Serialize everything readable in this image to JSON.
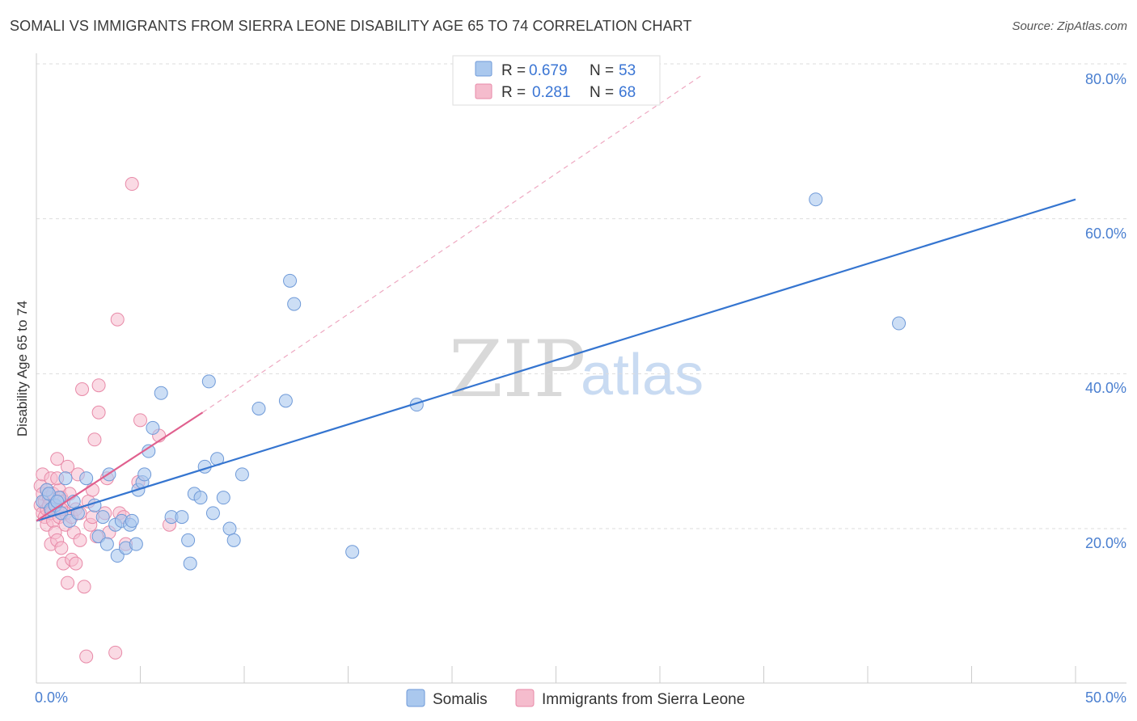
{
  "title": "SOMALI VS IMMIGRANTS FROM SIERRA LEONE DISABILITY AGE 65 TO 74 CORRELATION CHART",
  "source": "Source: ZipAtlas.com",
  "watermark": {
    "zip": "ZIP",
    "atlas": "atlas"
  },
  "legend": {
    "r_label": "R =",
    "n_label": "N =",
    "series1": {
      "r": "0.679",
      "n": "53"
    },
    "series2": {
      "r": "0.281",
      "n": "68"
    }
  },
  "colors": {
    "blue_fill": "#aac8ee",
    "blue_stroke": "#6f9ad8",
    "blue_line": "#3575d0",
    "pink_fill": "#f5bccd",
    "pink_stroke": "#e88aa8",
    "pink_line": "#e0608e"
  },
  "chart_data": {
    "type": "scatter",
    "title": "SOMALI VS IMMIGRANTS FROM SIERRA LEONE DISABILITY AGE 65 TO 74 CORRELATION CHART",
    "xlabel": "",
    "ylabel": "Disability Age 65 to 74",
    "xlim": [
      0,
      50
    ],
    "ylim": [
      1,
      81
    ],
    "x_tick_labels": [
      "0.0%",
      "50.0%"
    ],
    "y_ticks": [
      20,
      40,
      60,
      80
    ],
    "y_tick_labels": [
      "20.0%",
      "40.0%",
      "60.0%",
      "80.0%"
    ],
    "series": [
      {
        "name": "Somalis",
        "r": 0.679,
        "n": 53,
        "trend": {
          "x": [
            0,
            50
          ],
          "y": [
            21.0,
            62.5
          ]
        },
        "points": [
          [
            0.3,
            23.5
          ],
          [
            0.5,
            25.0
          ],
          [
            0.7,
            22.5
          ],
          [
            0.9,
            23.0
          ],
          [
            1.1,
            24.0
          ],
          [
            1.2,
            22.0
          ],
          [
            1.4,
            26.5
          ],
          [
            1.6,
            21.0
          ],
          [
            1.8,
            23.5
          ],
          [
            2.0,
            22.0
          ],
          [
            2.4,
            26.5
          ],
          [
            2.8,
            23.0
          ],
          [
            3.0,
            19.0
          ],
          [
            3.2,
            21.5
          ],
          [
            3.4,
            18.0
          ],
          [
            3.5,
            27.0
          ],
          [
            3.8,
            20.5
          ],
          [
            3.9,
            16.5
          ],
          [
            4.1,
            21.0
          ],
          [
            4.3,
            17.5
          ],
          [
            4.5,
            20.5
          ],
          [
            4.6,
            21.0
          ],
          [
            4.8,
            18.0
          ],
          [
            4.9,
            25.0
          ],
          [
            5.1,
            26.0
          ],
          [
            5.2,
            27.0
          ],
          [
            5.4,
            30.0
          ],
          [
            5.6,
            33.0
          ],
          [
            6.0,
            37.5
          ],
          [
            6.5,
            21.5
          ],
          [
            7.0,
            21.5
          ],
          [
            7.3,
            18.5
          ],
          [
            7.4,
            15.5
          ],
          [
            7.6,
            24.5
          ],
          [
            7.9,
            24.0
          ],
          [
            8.1,
            28.0
          ],
          [
            8.3,
            39.0
          ],
          [
            8.5,
            22.0
          ],
          [
            8.7,
            29.0
          ],
          [
            9.0,
            24.0
          ],
          [
            9.3,
            20.0
          ],
          [
            9.5,
            18.5
          ],
          [
            9.9,
            27.0
          ],
          [
            10.7,
            35.5
          ],
          [
            12.0,
            36.5
          ],
          [
            12.2,
            52.0
          ],
          [
            12.4,
            49.0
          ],
          [
            15.2,
            17.0
          ],
          [
            18.3,
            36.0
          ],
          [
            37.5,
            62.5
          ],
          [
            41.5,
            46.5
          ],
          [
            0.6,
            24.5
          ],
          [
            1.0,
            23.5
          ]
        ]
      },
      {
        "name": "Immigrants from Sierra Leone",
        "r": 0.281,
        "n": 68,
        "trend": {
          "x": [
            0,
            8.0
          ],
          "y": [
            21.0,
            35.0
          ]
        },
        "trend_dashed": {
          "x": [
            8.0,
            32.0
          ],
          "y": [
            35.0,
            78.5
          ]
        },
        "points": [
          [
            0.2,
            23.0
          ],
          [
            0.2,
            25.5
          ],
          [
            0.3,
            22.0
          ],
          [
            0.3,
            24.5
          ],
          [
            0.3,
            27.0
          ],
          [
            0.4,
            21.5
          ],
          [
            0.4,
            23.5
          ],
          [
            0.5,
            25.0
          ],
          [
            0.5,
            22.5
          ],
          [
            0.5,
            20.5
          ],
          [
            0.6,
            24.0
          ],
          [
            0.6,
            23.0
          ],
          [
            0.7,
            22.0
          ],
          [
            0.7,
            26.5
          ],
          [
            0.7,
            18.0
          ],
          [
            0.8,
            24.5
          ],
          [
            0.8,
            21.0
          ],
          [
            0.9,
            23.0
          ],
          [
            0.9,
            19.5
          ],
          [
            1.0,
            29.0
          ],
          [
            1.0,
            22.5
          ],
          [
            1.0,
            18.5
          ],
          [
            1.1,
            25.0
          ],
          [
            1.1,
            21.5
          ],
          [
            1.2,
            24.0
          ],
          [
            1.2,
            17.5
          ],
          [
            1.3,
            23.5
          ],
          [
            1.3,
            15.5
          ],
          [
            1.4,
            22.0
          ],
          [
            1.4,
            20.5
          ],
          [
            1.5,
            13.0
          ],
          [
            1.5,
            28.0
          ],
          [
            1.6,
            24.5
          ],
          [
            1.7,
            21.5
          ],
          [
            1.7,
            16.0
          ],
          [
            1.8,
            19.5
          ],
          [
            1.9,
            22.5
          ],
          [
            1.9,
            15.5
          ],
          [
            2.0,
            27.0
          ],
          [
            2.1,
            22.0
          ],
          [
            2.1,
            18.5
          ],
          [
            2.2,
            38.0
          ],
          [
            2.3,
            12.5
          ],
          [
            2.4,
            3.5
          ],
          [
            2.5,
            23.5
          ],
          [
            2.6,
            20.5
          ],
          [
            2.7,
            25.0
          ],
          [
            2.7,
            21.5
          ],
          [
            2.8,
            31.5
          ],
          [
            2.9,
            19.0
          ],
          [
            3.0,
            38.5
          ],
          [
            3.0,
            35.0
          ],
          [
            3.3,
            22.0
          ],
          [
            3.4,
            26.5
          ],
          [
            3.5,
            19.5
          ],
          [
            3.8,
            4.0
          ],
          [
            3.9,
            47.0
          ],
          [
            4.0,
            22.0
          ],
          [
            4.2,
            21.5
          ],
          [
            4.3,
            18.0
          ],
          [
            4.6,
            64.5
          ],
          [
            4.9,
            26.0
          ],
          [
            5.0,
            34.0
          ],
          [
            5.9,
            32.0
          ],
          [
            6.4,
            20.5
          ],
          [
            1.0,
            26.5
          ],
          [
            0.9,
            23.0
          ],
          [
            1.2,
            22.5
          ]
        ]
      }
    ],
    "legend_position": "top-center",
    "grid": true
  },
  "bottom_legend": {
    "series1_label": "Somalis",
    "series2_label": "Immigrants from Sierra Leone"
  },
  "axes": {
    "ylabel": "Disability Age 65 to 74",
    "x_left_label": "0.0%",
    "x_right_label": "50.0%",
    "y_labels": [
      "20.0%",
      "40.0%",
      "60.0%",
      "80.0%"
    ]
  }
}
